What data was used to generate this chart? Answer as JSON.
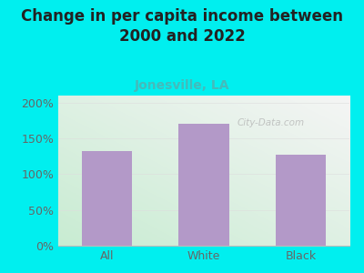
{
  "title": "Change in per capita income between\n2000 and 2022",
  "subtitle": "Jonesville, LA",
  "categories": [
    "All",
    "White",
    "Black"
  ],
  "values": [
    133,
    170,
    127
  ],
  "bar_color": "#b399c8",
  "background_outer": "#00efef",
  "background_plot_topleft": "#e8f5e0",
  "background_plot_bottomleft": "#c8ecd0",
  "background_plot_right": "#f5f5f5",
  "title_fontsize": 12,
  "subtitle_fontsize": 10,
  "title_color": "#222222",
  "subtitle_color": "#44bbbb",
  "tick_label_color": "#666666",
  "yticks": [
    0,
    50,
    100,
    150,
    200
  ],
  "ytick_labels": [
    "0%",
    "50%",
    "100%",
    "150%",
    "200%"
  ],
  "ylim": [
    0,
    210
  ],
  "watermark": "City-Data.com"
}
